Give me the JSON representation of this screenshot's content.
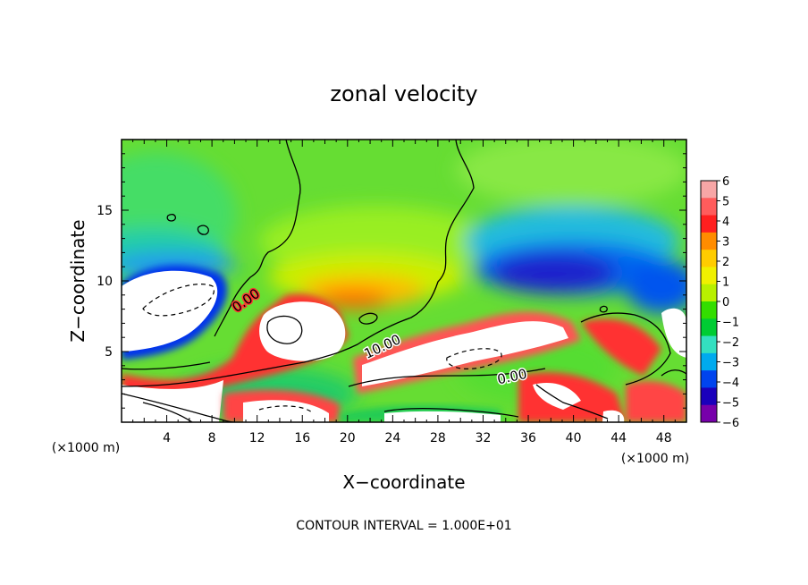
{
  "chart_data": {
    "type": "heatmap",
    "title": "zonal velocity",
    "xlabel": "X−coordinate",
    "ylabel": "Z−coordinate",
    "x_unit": "(×1000 m)",
    "x_unit_right": "(×1000 m)",
    "footer": "CONTOUR INTERVAL = 1.000E+01",
    "xlim": [
      0,
      50
    ],
    "ylim": [
      0,
      20
    ],
    "x_ticks": [
      4,
      8,
      12,
      16,
      20,
      24,
      28,
      32,
      36,
      40,
      44,
      48
    ],
    "y_ticks": [
      5,
      10,
      15
    ],
    "colorbar": {
      "labels": [
        "6",
        "5",
        "4",
        "3",
        "2",
        "1",
        "0",
        "−1",
        "−2",
        "−3",
        "−4",
        "−5",
        "−6"
      ],
      "colors": [
        "#f7a6a6",
        "#ff5c5c",
        "#ff1f1f",
        "#ff8c00",
        "#ffcc00",
        "#f0f000",
        "#b8f000",
        "#33dd00",
        "#00cc33",
        "#33e0c0",
        "#00aaee",
        "#0044ee",
        "#1a00bb",
        "#7700aa"
      ]
    },
    "contour_labels": [
      "0.00",
      "10.00",
      "0.00"
    ]
  }
}
